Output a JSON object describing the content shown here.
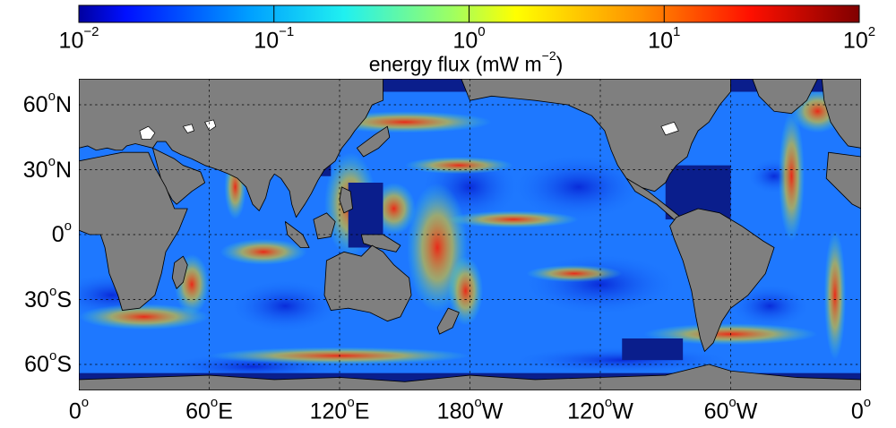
{
  "colorbar": {
    "title_prefix": "energy flux (mW m",
    "title_exponent": "−2",
    "title_suffix": ")",
    "scale": "log",
    "range": [
      0.01,
      100
    ],
    "colormap": "jet",
    "ticks": [
      {
        "base": "10",
        "exp": "−2",
        "value": 0.01
      },
      {
        "base": "10",
        "exp": "−1",
        "value": 0.1
      },
      {
        "base": "10",
        "exp": "0",
        "value": 1
      },
      {
        "base": "10",
        "exp": "1",
        "value": 10
      },
      {
        "base": "10",
        "exp": "2",
        "value": 100
      }
    ]
  },
  "map": {
    "projection": "equirectangular",
    "lon_range": [
      0,
      360
    ],
    "lat_range": [
      -72,
      72
    ],
    "grid": true,
    "land_color": "#7f7f7f",
    "ice_color": "#ffffff",
    "ocean_low_color": "#0a1e8c",
    "lon_ticks": [
      {
        "deg": "0",
        "dir": "",
        "value": 0
      },
      {
        "deg": "60",
        "dir": "E",
        "value": 60
      },
      {
        "deg": "120",
        "dir": "E",
        "value": 120
      },
      {
        "deg": "180",
        "dir": "W",
        "value": 180
      },
      {
        "deg": "120",
        "dir": "W",
        "value": 240
      },
      {
        "deg": "60",
        "dir": "W",
        "value": 300
      },
      {
        "deg": "0",
        "dir": "",
        "value": 360
      }
    ],
    "lat_ticks": [
      {
        "deg": "60",
        "dir": "N",
        "value": 60
      },
      {
        "deg": "30",
        "dir": "N",
        "value": 30
      },
      {
        "deg": "0",
        "dir": "",
        "value": 0
      },
      {
        "deg": "30",
        "dir": "S",
        "value": -30
      },
      {
        "deg": "60",
        "dir": "S",
        "value": -60
      }
    ]
  }
}
